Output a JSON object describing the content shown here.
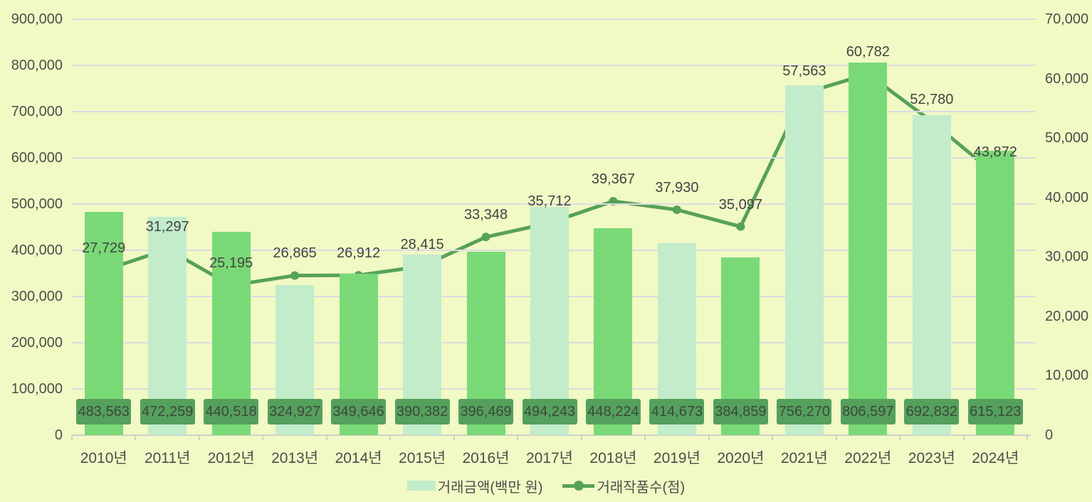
{
  "chart_data": {
    "type": "combo-bar-line",
    "title": "",
    "categories": [
      "2010년",
      "2011년",
      "2012년",
      "2013년",
      "2014년",
      "2015년",
      "2016년",
      "2017년",
      "2018년",
      "2019년",
      "2020년",
      "2021년",
      "2022년",
      "2023년",
      "2024년"
    ],
    "series": [
      {
        "name": "거래금액(백만 원)",
        "type": "bar",
        "axis": "left",
        "values": [
          483563,
          472259,
          440518,
          324927,
          349646,
          390382,
          396469,
          494243,
          448224,
          414673,
          384859,
          756270,
          806597,
          692832,
          615123
        ]
      },
      {
        "name": "거래작품수(점)",
        "type": "line",
        "axis": "right",
        "values": [
          27729,
          31297,
          25195,
          26865,
          26912,
          28415,
          33348,
          35712,
          39367,
          37930,
          35097,
          57563,
          60782,
          52780,
          43872
        ]
      }
    ],
    "left_axis": {
      "min": 0,
      "max": 900000,
      "step": 100000
    },
    "right_axis": {
      "min": 0,
      "max": 70000,
      "step": 10000
    },
    "grid": true,
    "legend_position": "bottom"
  },
  "legend": {
    "amount_label": "거래금액(백만 원)",
    "count_label": "거래작품수(점)"
  },
  "colors": {
    "background": "#F1F9C4",
    "bar_green": "#7AD977",
    "bar_mint": "#C2ECCA",
    "line_green": "#57A158",
    "badge_green": "#55A05C",
    "badge_text": "#3D473E",
    "gridline": "#DBDBE2",
    "axis_line": "#CFCFCF",
    "axis_text": "#4D4D4D",
    "label_text": "#434343"
  }
}
